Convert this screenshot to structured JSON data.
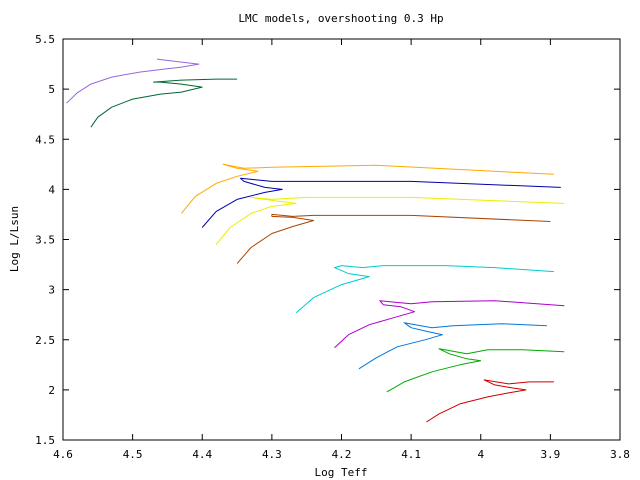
{
  "chart_data": {
    "type": "line",
    "title": "LMC models, overshooting 0.3 Hp",
    "xlabel": "Log Teff",
    "ylabel": "Log L/Lsun",
    "x_reversed": true,
    "xlim": [
      4.6,
      3.8
    ],
    "ylim": [
      1.5,
      5.5
    ],
    "xticks": [
      {
        "value": 4.6,
        "label": "4.6"
      },
      {
        "value": 4.5,
        "label": "4.5"
      },
      {
        "value": 4.4,
        "label": "4.4"
      },
      {
        "value": 4.3,
        "label": "4.3"
      },
      {
        "value": 4.2,
        "label": "4.2"
      },
      {
        "value": 4.1,
        "label": "4.1"
      },
      {
        "value": 4.0,
        "label": "4"
      },
      {
        "value": 3.9,
        "label": "3.9"
      },
      {
        "value": 3.8,
        "label": "3.8"
      }
    ],
    "yticks": [
      {
        "value": 1.5,
        "label": "1.5"
      },
      {
        "value": 2.0,
        "label": "2"
      },
      {
        "value": 2.5,
        "label": "2.5"
      },
      {
        "value": 3.0,
        "label": "3"
      },
      {
        "value": 3.5,
        "label": "3.5"
      },
      {
        "value": 4.0,
        "label": "4"
      },
      {
        "value": 4.5,
        "label": "4.5"
      },
      {
        "value": 5.0,
        "label": "5"
      },
      {
        "value": 5.5,
        "label": "5.5"
      }
    ],
    "grid": false,
    "legend": "none",
    "series": [
      {
        "color": "#cc0000",
        "points": [
          [
            4.078,
            1.68
          ],
          [
            4.06,
            1.76
          ],
          [
            4.03,
            1.86
          ],
          [
            3.99,
            1.93
          ],
          [
            3.96,
            1.97
          ],
          [
            3.935,
            2.0
          ],
          [
            3.955,
            2.02
          ],
          [
            3.98,
            2.05
          ],
          [
            3.995,
            2.1
          ],
          [
            3.96,
            2.06
          ],
          [
            3.93,
            2.08
          ],
          [
            3.895,
            2.08
          ]
        ]
      },
      {
        "color": "#00aa00",
        "points": [
          [
            4.135,
            1.98
          ],
          [
            4.11,
            2.08
          ],
          [
            4.07,
            2.18
          ],
          [
            4.03,
            2.25
          ],
          [
            4.0,
            2.29
          ],
          [
            4.02,
            2.31
          ],
          [
            4.045,
            2.36
          ],
          [
            4.06,
            2.41
          ],
          [
            4.02,
            2.36
          ],
          [
            3.99,
            2.4
          ],
          [
            3.94,
            2.4
          ],
          [
            3.88,
            2.38
          ]
        ]
      },
      {
        "color": "#0077dd",
        "points": [
          [
            4.175,
            2.21
          ],
          [
            4.15,
            2.32
          ],
          [
            4.12,
            2.43
          ],
          [
            4.08,
            2.5
          ],
          [
            4.055,
            2.55
          ],
          [
            4.075,
            2.58
          ],
          [
            4.1,
            2.62
          ],
          [
            4.11,
            2.67
          ],
          [
            4.07,
            2.62
          ],
          [
            4.04,
            2.64
          ],
          [
            3.97,
            2.66
          ],
          [
            3.905,
            2.64
          ]
        ]
      },
      {
        "color": "#aa00cc",
        "points": [
          [
            4.21,
            2.42
          ],
          [
            4.19,
            2.55
          ],
          [
            4.16,
            2.65
          ],
          [
            4.12,
            2.73
          ],
          [
            4.095,
            2.78
          ],
          [
            4.115,
            2.83
          ],
          [
            4.14,
            2.85
          ],
          [
            4.145,
            2.89
          ],
          [
            4.1,
            2.86
          ],
          [
            4.07,
            2.88
          ],
          [
            3.98,
            2.89
          ],
          [
            3.88,
            2.84
          ]
        ]
      },
      {
        "color": "#00cccc",
        "points": [
          [
            4.265,
            2.77
          ],
          [
            4.24,
            2.92
          ],
          [
            4.2,
            3.05
          ],
          [
            4.16,
            3.13
          ],
          [
            4.19,
            3.16
          ],
          [
            4.21,
            3.22
          ],
          [
            4.2,
            3.24
          ],
          [
            4.17,
            3.22
          ],
          [
            4.14,
            3.24
          ],
          [
            4.05,
            3.24
          ],
          [
            3.98,
            3.22
          ],
          [
            3.895,
            3.18
          ]
        ]
      },
      {
        "color": "#aa4400",
        "points": [
          [
            4.35,
            3.26
          ],
          [
            4.33,
            3.42
          ],
          [
            4.3,
            3.56
          ],
          [
            4.27,
            3.63
          ],
          [
            4.24,
            3.69
          ],
          [
            4.27,
            3.72
          ],
          [
            4.3,
            3.73
          ],
          [
            4.3,
            3.75
          ],
          [
            4.27,
            3.73
          ],
          [
            4.24,
            3.74
          ],
          [
            4.1,
            3.74
          ],
          [
            3.9,
            3.68
          ]
        ]
      },
      {
        "color": "#eeee00",
        "points": [
          [
            4.38,
            3.45
          ],
          [
            4.36,
            3.62
          ],
          [
            4.33,
            3.76
          ],
          [
            4.3,
            3.83
          ],
          [
            4.265,
            3.86
          ],
          [
            4.3,
            3.89
          ],
          [
            4.33,
            3.92
          ],
          [
            4.3,
            3.9
          ],
          [
            4.25,
            3.92
          ],
          [
            4.1,
            3.92
          ],
          [
            3.88,
            3.86
          ]
        ]
      },
      {
        "color": "#0000aa",
        "points": [
          [
            4.4,
            3.62
          ],
          [
            4.38,
            3.78
          ],
          [
            4.35,
            3.9
          ],
          [
            4.31,
            3.97
          ],
          [
            4.285,
            4.0
          ],
          [
            4.31,
            4.02
          ],
          [
            4.34,
            4.08
          ],
          [
            4.345,
            4.11
          ],
          [
            4.3,
            4.08
          ],
          [
            4.26,
            4.08
          ],
          [
            4.1,
            4.08
          ],
          [
            3.885,
            4.02
          ]
        ]
      },
      {
        "color": "#ffaa00",
        "points": [
          [
            4.43,
            3.76
          ],
          [
            4.41,
            3.93
          ],
          [
            4.38,
            4.06
          ],
          [
            4.35,
            4.13
          ],
          [
            4.32,
            4.18
          ],
          [
            4.35,
            4.21
          ],
          [
            4.37,
            4.25
          ],
          [
            4.34,
            4.21
          ],
          [
            4.3,
            4.22
          ],
          [
            4.15,
            4.24
          ],
          [
            3.895,
            4.15
          ]
        ]
      },
      {
        "color": "#006633",
        "points": [
          [
            4.56,
            4.62
          ],
          [
            4.55,
            4.72
          ],
          [
            4.53,
            4.82
          ],
          [
            4.5,
            4.9
          ],
          [
            4.46,
            4.95
          ],
          [
            4.43,
            4.97
          ],
          [
            4.4,
            5.02
          ],
          [
            4.43,
            5.05
          ],
          [
            4.46,
            5.07
          ],
          [
            4.47,
            5.07
          ],
          [
            4.43,
            5.09
          ],
          [
            4.38,
            5.1
          ],
          [
            4.35,
            5.1
          ]
        ]
      },
      {
        "color": "#9966dd",
        "points": [
          [
            4.595,
            4.86
          ],
          [
            4.58,
            4.96
          ],
          [
            4.56,
            5.05
          ],
          [
            4.53,
            5.12
          ],
          [
            4.49,
            5.17
          ],
          [
            4.455,
            5.2
          ],
          [
            4.43,
            5.22
          ],
          [
            4.405,
            5.25
          ],
          [
            4.43,
            5.27
          ],
          [
            4.465,
            5.3
          ]
        ]
      }
    ]
  }
}
